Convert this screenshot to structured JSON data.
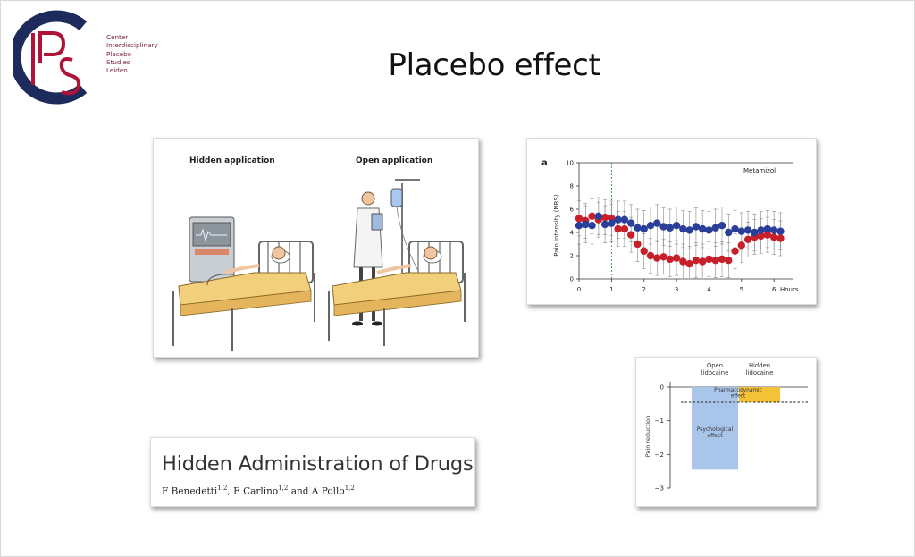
{
  "slide_title": "Placebo effect",
  "logo": {
    "monogram": "IPS",
    "lines": [
      "Center",
      "Interdisciplinary",
      "Placebo",
      "Studies",
      "Leiden"
    ]
  },
  "illustration": {
    "hidden_label": "Hidden application",
    "open_label": "Open application"
  },
  "chart_data": [
    {
      "type": "scatter",
      "panel_label": "a",
      "title": "Metamizol",
      "ylabel": "Pain intensity (NRS)",
      "xlabel": "",
      "x_ticks": [
        "0",
        "1",
        "2",
        "3",
        "4",
        "5",
        "6"
      ],
      "x_unit_label": "Hours",
      "y_ticks": [
        "0",
        "2",
        "4",
        "6",
        "8",
        "10"
      ],
      "xlim": [
        0,
        6.6
      ],
      "ylim": [
        0,
        10
      ],
      "colors": {
        "series_a": "#c8202a",
        "series_b": "#2a3f99",
        "marker": "#3a8a3a"
      },
      "marker_x": 1,
      "x": [
        0,
        0.2,
        0.4,
        0.6,
        0.8,
        1.0,
        1.2,
        1.4,
        1.6,
        1.8,
        2.0,
        2.2,
        2.4,
        2.6,
        2.8,
        3.0,
        3.2,
        3.4,
        3.6,
        3.8,
        4.0,
        4.2,
        4.4,
        4.6,
        4.8,
        5.0,
        5.2,
        5.4,
        5.6,
        5.8,
        6.0,
        6.2
      ],
      "series": [
        {
          "values": [
            5.2,
            5.0,
            5.4,
            5.1,
            5.3,
            5.2,
            4.3,
            4.3,
            3.8,
            3.0,
            2.4,
            2.0,
            1.8,
            1.9,
            1.7,
            1.8,
            1.5,
            1.3,
            1.6,
            1.5,
            1.7,
            1.6,
            1.7,
            1.6,
            2.4,
            2.9,
            3.4,
            3.6,
            3.7,
            3.8,
            3.6,
            3.5
          ],
          "err": 1.5
        },
        {
          "values": [
            4.6,
            4.7,
            4.6,
            5.4,
            4.7,
            4.8,
            5.1,
            5.1,
            4.8,
            4.4,
            4.3,
            4.6,
            4.8,
            4.5,
            4.4,
            4.6,
            4.3,
            4.2,
            4.5,
            4.3,
            4.2,
            4.4,
            4.6,
            4.0,
            4.3,
            4.1,
            4.2,
            4.0,
            4.2,
            4.3,
            4.2,
            4.1
          ],
          "err": 1.6
        }
      ]
    },
    {
      "type": "bar",
      "categories": [
        "Open\nlidocaine",
        "Hidden\nlidocaine"
      ],
      "ylabel": "Pain reduction",
      "y_ticks": [
        "0",
        "−1",
        "−2",
        "−3"
      ],
      "ylim": [
        -3,
        0
      ],
      "reference_line": -0.45,
      "segments": [
        {
          "category": "Open lidocaine",
          "label": "Psychological\neffect",
          "from": 0,
          "to": -2.45,
          "color": "#a9c6ea"
        },
        {
          "category": "Hidden lidocaine",
          "label": "Pharmacodynamic\neffect",
          "from": 0,
          "to": -0.45,
          "color": "#f3c236"
        }
      ]
    }
  ],
  "paper": {
    "title": "Hidden Administration of Drugs",
    "authors": [
      {
        "name": "F Benedetti",
        "aff": "1,2",
        "sep": ", "
      },
      {
        "name": "E Carlino",
        "aff": "1,2",
        "sep": " and "
      },
      {
        "name": "A Pollo",
        "aff": "1,2",
        "sep": ""
      }
    ]
  }
}
